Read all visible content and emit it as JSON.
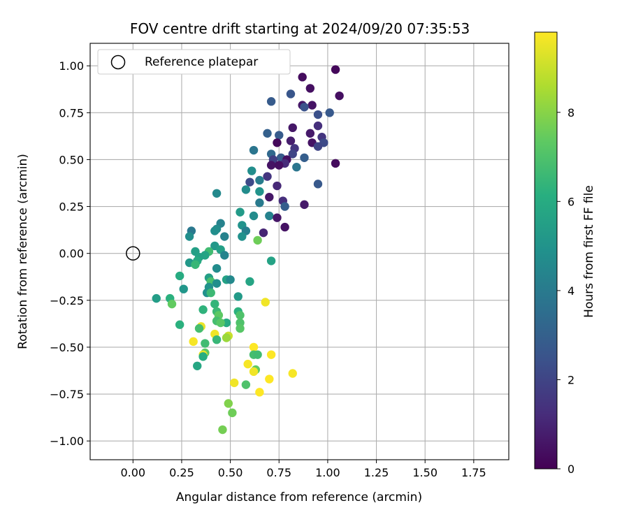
{
  "chart_data": {
    "type": "scatter",
    "title": "FOV centre drift starting at 2024/09/20 07:35:53",
    "xlabel": "Angular distance from reference (arcmin)",
    "ylabel": "Rotation from reference (arcmin)",
    "xlim": [
      -0.22,
      1.93
    ],
    "ylim": [
      -1.1,
      1.12
    ],
    "xticks": [
      "0.00",
      "0.25",
      "0.50",
      "0.75",
      "1.00",
      "1.25",
      "1.50",
      "1.75"
    ],
    "yticks": [
      "-1.00",
      "-0.75",
      "-0.50",
      "-0.25",
      "0.00",
      "0.25",
      "0.50",
      "0.75",
      "1.00"
    ],
    "grid": true,
    "legend": {
      "position": "top-left",
      "entries": [
        "Reference platepar"
      ]
    },
    "reference_point": {
      "x": 0,
      "y": 0
    },
    "colorbar": {
      "label": "Hours from first FF file",
      "range": [
        0,
        9.8
      ],
      "ticks": [
        "0",
        "2",
        "4",
        "6",
        "8"
      ],
      "colormap": "viridis"
    },
    "points": [
      {
        "x": 1.04,
        "y": 0.98,
        "c": 0.2
      },
      {
        "x": 0.87,
        "y": 0.94,
        "c": 0.3
      },
      {
        "x": 0.91,
        "y": 0.88,
        "c": 0.4
      },
      {
        "x": 1.06,
        "y": 0.84,
        "c": 0.4
      },
      {
        "x": 0.81,
        "y": 0.85,
        "c": 2.6
      },
      {
        "x": 0.71,
        "y": 0.81,
        "c": 2.8
      },
      {
        "x": 0.87,
        "y": 0.79,
        "c": 0.6
      },
      {
        "x": 0.92,
        "y": 0.79,
        "c": 0.5
      },
      {
        "x": 0.88,
        "y": 0.78,
        "c": 2.5
      },
      {
        "x": 1.01,
        "y": 0.75,
        "c": 2.7
      },
      {
        "x": 0.95,
        "y": 0.74,
        "c": 2.4
      },
      {
        "x": 0.95,
        "y": 0.68,
        "c": 1.3
      },
      {
        "x": 0.82,
        "y": 0.67,
        "c": 0.6
      },
      {
        "x": 0.69,
        "y": 0.64,
        "c": 3.0
      },
      {
        "x": 0.75,
        "y": 0.63,
        "c": 2.8
      },
      {
        "x": 0.91,
        "y": 0.64,
        "c": 0.7
      },
      {
        "x": 0.97,
        "y": 0.62,
        "c": 1.5
      },
      {
        "x": 0.81,
        "y": 0.6,
        "c": 0.8
      },
      {
        "x": 0.92,
        "y": 0.59,
        "c": 0.5
      },
      {
        "x": 0.98,
        "y": 0.59,
        "c": 2.2
      },
      {
        "x": 0.74,
        "y": 0.59,
        "c": 0.2
      },
      {
        "x": 0.95,
        "y": 0.57,
        "c": 2.0
      },
      {
        "x": 0.83,
        "y": 0.56,
        "c": 1.5
      },
      {
        "x": 0.62,
        "y": 0.55,
        "c": 3.8
      },
      {
        "x": 0.71,
        "y": 0.53,
        "c": 3.3
      },
      {
        "x": 0.82,
        "y": 0.53,
        "c": 2.0
      },
      {
        "x": 0.76,
        "y": 0.51,
        "c": 2.8
      },
      {
        "x": 0.79,
        "y": 0.5,
        "c": 0.4
      },
      {
        "x": 0.88,
        "y": 0.51,
        "c": 2.9
      },
      {
        "x": 0.72,
        "y": 0.5,
        "c": 1.8
      },
      {
        "x": 0.78,
        "y": 0.48,
        "c": 1.2
      },
      {
        "x": 0.71,
        "y": 0.47,
        "c": 0.5
      },
      {
        "x": 0.75,
        "y": 0.47,
        "c": 0.4
      },
      {
        "x": 0.84,
        "y": 0.46,
        "c": 3.8
      },
      {
        "x": 1.04,
        "y": 0.48,
        "c": 0.3
      },
      {
        "x": 0.61,
        "y": 0.44,
        "c": 4.8
      },
      {
        "x": 0.69,
        "y": 0.41,
        "c": 1.5
      },
      {
        "x": 0.65,
        "y": 0.39,
        "c": 4.1
      },
      {
        "x": 0.6,
        "y": 0.38,
        "c": 2.2
      },
      {
        "x": 0.74,
        "y": 0.36,
        "c": 1.1
      },
      {
        "x": 0.95,
        "y": 0.37,
        "c": 2.7
      },
      {
        "x": 0.58,
        "y": 0.34,
        "c": 4.7
      },
      {
        "x": 0.65,
        "y": 0.33,
        "c": 5.0
      },
      {
        "x": 0.7,
        "y": 0.3,
        "c": 0.6
      },
      {
        "x": 0.77,
        "y": 0.28,
        "c": 1.3
      },
      {
        "x": 0.65,
        "y": 0.27,
        "c": 4.0
      },
      {
        "x": 0.78,
        "y": 0.25,
        "c": 2.9
      },
      {
        "x": 0.88,
        "y": 0.26,
        "c": 0.7
      },
      {
        "x": 0.43,
        "y": 0.32,
        "c": 4.6
      },
      {
        "x": 0.55,
        "y": 0.22,
        "c": 5.3
      },
      {
        "x": 0.62,
        "y": 0.2,
        "c": 4.7
      },
      {
        "x": 0.7,
        "y": 0.2,
        "c": 4.3
      },
      {
        "x": 0.74,
        "y": 0.19,
        "c": 0.6
      },
      {
        "x": 0.45,
        "y": 0.16,
        "c": 4.3
      },
      {
        "x": 0.56,
        "y": 0.15,
        "c": 5.0
      },
      {
        "x": 0.78,
        "y": 0.14,
        "c": 0.5
      },
      {
        "x": 0.43,
        "y": 0.13,
        "c": 4.7
      },
      {
        "x": 0.3,
        "y": 0.12,
        "c": 3.9
      },
      {
        "x": 0.42,
        "y": 0.12,
        "c": 4.8
      },
      {
        "x": 0.58,
        "y": 0.12,
        "c": 4.2
      },
      {
        "x": 0.67,
        "y": 0.11,
        "c": 1.0
      },
      {
        "x": 0.29,
        "y": 0.09,
        "c": 4.8
      },
      {
        "x": 0.47,
        "y": 0.09,
        "c": 4.3
      },
      {
        "x": 0.56,
        "y": 0.09,
        "c": 4.9
      },
      {
        "x": 0.64,
        "y": 0.07,
        "c": 7.6
      },
      {
        "x": 0.42,
        "y": 0.04,
        "c": 5.2
      },
      {
        "x": 0.45,
        "y": 0.02,
        "c": 5.5
      },
      {
        "x": 0.39,
        "y": 0.01,
        "c": 6.7
      },
      {
        "x": 0.32,
        "y": 0.01,
        "c": 5.5
      },
      {
        "x": 0.37,
        "y": -0.01,
        "c": 5.7
      },
      {
        "x": 0.34,
        "y": -0.02,
        "c": 5.6
      },
      {
        "x": 0.47,
        "y": -0.01,
        "c": 4.4
      },
      {
        "x": 0.33,
        "y": -0.04,
        "c": 5.9
      },
      {
        "x": 0.29,
        "y": -0.05,
        "c": 5.2
      },
      {
        "x": 0.32,
        "y": -0.06,
        "c": 6.5
      },
      {
        "x": 0.71,
        "y": -0.04,
        "c": 5.6
      },
      {
        "x": 0.43,
        "y": -0.08,
        "c": 4.7
      },
      {
        "x": 0.24,
        "y": -0.12,
        "c": 6.0
      },
      {
        "x": 0.39,
        "y": -0.13,
        "c": 5.5
      },
      {
        "x": 0.4,
        "y": -0.15,
        "c": 6.9
      },
      {
        "x": 0.48,
        "y": -0.14,
        "c": 5.6
      },
      {
        "x": 0.5,
        "y": -0.14,
        "c": 4.6
      },
      {
        "x": 0.6,
        "y": -0.15,
        "c": 5.7
      },
      {
        "x": 0.39,
        "y": -0.18,
        "c": 5.0
      },
      {
        "x": 0.43,
        "y": -0.16,
        "c": 4.8
      },
      {
        "x": 0.26,
        "y": -0.19,
        "c": 5.1
      },
      {
        "x": 0.38,
        "y": -0.21,
        "c": 4.9
      },
      {
        "x": 0.4,
        "y": -0.21,
        "c": 6.6
      },
      {
        "x": 0.12,
        "y": -0.24,
        "c": 5.4
      },
      {
        "x": 0.19,
        "y": -0.24,
        "c": 6.2
      },
      {
        "x": 0.54,
        "y": -0.23,
        "c": 5.3
      },
      {
        "x": 0.2,
        "y": -0.27,
        "c": 7.4
      },
      {
        "x": 0.42,
        "y": -0.27,
        "c": 6.4
      },
      {
        "x": 0.68,
        "y": -0.26,
        "c": 9.6
      },
      {
        "x": 0.36,
        "y": -0.3,
        "c": 6.3
      },
      {
        "x": 0.43,
        "y": -0.31,
        "c": 6.6
      },
      {
        "x": 0.54,
        "y": -0.31,
        "c": 6.2
      },
      {
        "x": 0.44,
        "y": -0.33,
        "c": 7.3
      },
      {
        "x": 0.55,
        "y": -0.33,
        "c": 7.0
      },
      {
        "x": 0.48,
        "y": -0.37,
        "c": 6.0
      },
      {
        "x": 0.43,
        "y": -0.36,
        "c": 6.8
      },
      {
        "x": 0.45,
        "y": -0.37,
        "c": 7.2
      },
      {
        "x": 0.24,
        "y": -0.38,
        "c": 6.2
      },
      {
        "x": 0.55,
        "y": -0.37,
        "c": 7.0
      },
      {
        "x": 0.35,
        "y": -0.39,
        "c": 9.5
      },
      {
        "x": 0.34,
        "y": -0.4,
        "c": 6.8
      },
      {
        "x": 0.55,
        "y": -0.4,
        "c": 7.2
      },
      {
        "x": 0.49,
        "y": -0.44,
        "c": 9.0
      },
      {
        "x": 0.42,
        "y": -0.43,
        "c": 9.6
      },
      {
        "x": 0.48,
        "y": -0.45,
        "c": 8.3
      },
      {
        "x": 0.43,
        "y": -0.46,
        "c": 6.5
      },
      {
        "x": 0.37,
        "y": -0.48,
        "c": 6.7
      },
      {
        "x": 0.31,
        "y": -0.47,
        "c": 9.7
      },
      {
        "x": 0.62,
        "y": -0.5,
        "c": 9.8
      },
      {
        "x": 0.37,
        "y": -0.53,
        "c": 7.3
      },
      {
        "x": 0.36,
        "y": -0.54,
        "c": 9.5
      },
      {
        "x": 0.36,
        "y": -0.55,
        "c": 6.1
      },
      {
        "x": 0.62,
        "y": -0.54,
        "c": 6.8
      },
      {
        "x": 0.64,
        "y": -0.54,
        "c": 6.7
      },
      {
        "x": 0.71,
        "y": -0.54,
        "c": 9.8
      },
      {
        "x": 0.33,
        "y": -0.6,
        "c": 5.8
      },
      {
        "x": 0.59,
        "y": -0.59,
        "c": 9.7
      },
      {
        "x": 0.63,
        "y": -0.62,
        "c": 7.4
      },
      {
        "x": 0.62,
        "y": -0.63,
        "c": 9.6
      },
      {
        "x": 0.82,
        "y": -0.64,
        "c": 9.7
      },
      {
        "x": 0.7,
        "y": -0.67,
        "c": 9.8
      },
      {
        "x": 0.52,
        "y": -0.69,
        "c": 9.6
      },
      {
        "x": 0.58,
        "y": -0.7,
        "c": 7.0
      },
      {
        "x": 0.65,
        "y": -0.74,
        "c": 9.8
      },
      {
        "x": 0.49,
        "y": -0.8,
        "c": 7.9
      },
      {
        "x": 0.51,
        "y": -0.85,
        "c": 7.6
      },
      {
        "x": 0.46,
        "y": -0.94,
        "c": 7.7
      }
    ]
  }
}
